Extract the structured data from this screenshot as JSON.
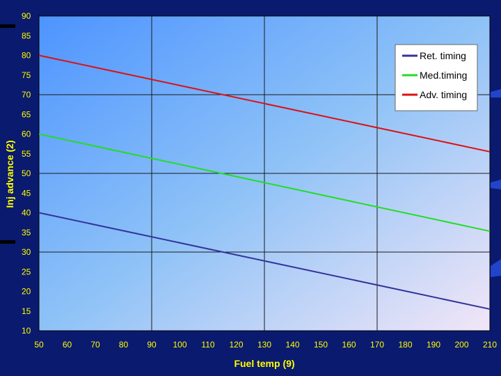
{
  "chart_data": {
    "type": "line",
    "title": "",
    "xlabel": "Fuel temp (9)",
    "ylabel": "Inj advance (2)",
    "xlim": [
      50,
      210
    ],
    "ylim": [
      10,
      90
    ],
    "xticks": [
      50,
      60,
      70,
      80,
      90,
      100,
      110,
      120,
      130,
      140,
      150,
      160,
      170,
      180,
      190,
      200,
      210
    ],
    "yticks": [
      10,
      15,
      20,
      25,
      30,
      35,
      40,
      45,
      50,
      55,
      60,
      65,
      70,
      75,
      80,
      85,
      90
    ],
    "grid": true,
    "legend_position": "top-right",
    "series": [
      {
        "name": "Ret. timing",
        "color": "#33339a",
        "x": [
          50,
          210
        ],
        "y": [
          40,
          15.5
        ]
      },
      {
        "name": "Med.timing",
        "color": "#22dd22",
        "x": [
          50,
          210
        ],
        "y": [
          60,
          35.3
        ]
      },
      {
        "name": "Adv. timing",
        "color": "#dd1111",
        "x": [
          50,
          210
        ],
        "y": [
          80,
          55.5
        ]
      }
    ]
  }
}
